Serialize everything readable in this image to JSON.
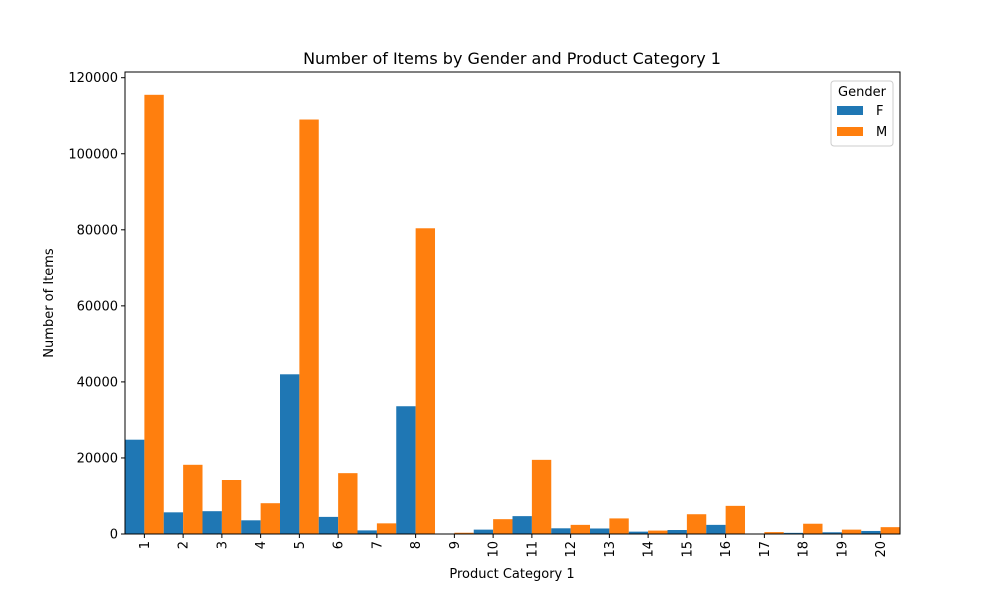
{
  "chart_data": {
    "type": "bar",
    "title": "Number of Items by Gender and Product Category 1",
    "xlabel": "Product Category 1",
    "ylabel": "Number of Items",
    "categories": [
      "1",
      "2",
      "3",
      "4",
      "5",
      "6",
      "7",
      "8",
      "9",
      "10",
      "11",
      "12",
      "13",
      "14",
      "15",
      "16",
      "17",
      "18",
      "19",
      "20"
    ],
    "series": [
      {
        "name": "F",
        "color": "#1f77b4",
        "values": [
          24800,
          5700,
          6000,
          3600,
          42000,
          4500,
          950,
          33600,
          70,
          1150,
          4700,
          1500,
          1450,
          620,
          1050,
          2400,
          60,
          300,
          450,
          800
        ]
      },
      {
        "name": "M",
        "color": "#ff7f0e",
        "values": [
          115500,
          18200,
          14200,
          8100,
          109000,
          16000,
          2800,
          80400,
          330,
          3900,
          19500,
          2400,
          4100,
          900,
          5200,
          7400,
          500,
          2700,
          1150,
          1800
        ]
      }
    ],
    "ylim": [
      0,
      121500
    ],
    "yticks": [
      "0",
      "20000",
      "40000",
      "60000",
      "80000",
      "100000",
      "120000"
    ],
    "ytick_values": [
      0,
      20000,
      40000,
      60000,
      80000,
      100000,
      120000
    ],
    "legend": {
      "title": "Gender",
      "position": "top-right"
    },
    "grid": false
  }
}
